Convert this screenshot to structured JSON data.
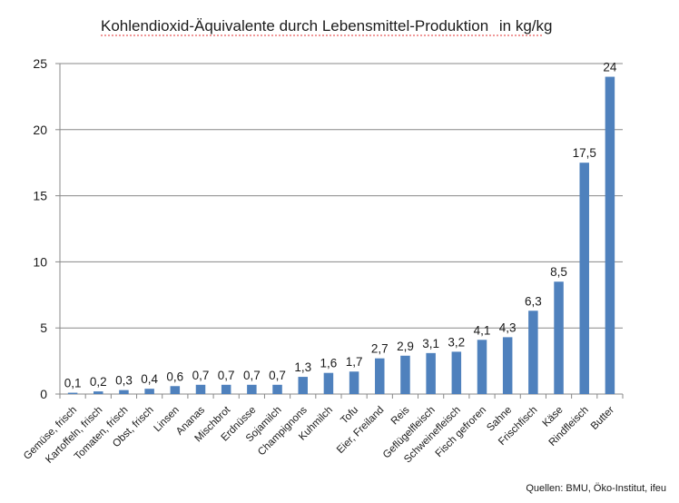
{
  "chart_data": {
    "type": "bar",
    "title": "Kohlendioxid-Äquivalente durch Lebensmittel-Produktion",
    "title_unit": "in kg/kg",
    "source": "Quellen: BMU, Öko-Institut, ifeu",
    "categories": [
      "Gemüse, frisch",
      "Kartoffeln, frisch",
      "Tomaten, frisch",
      "Obst, frisch",
      "Linsen",
      "Ananas",
      "Mischbrot",
      "Erdnüsse",
      "Sojamilch",
      "Champignons",
      "Kuhmilch",
      "Tofu",
      "Eier, Freiland",
      "Reis",
      "Geflügelfleisch",
      "Schweinefleisch",
      "Fisch gefroren",
      "Sahne",
      "Frischfisch",
      "Käse",
      "Rindfleisch",
      "Butter"
    ],
    "values": [
      0.1,
      0.2,
      0.3,
      0.4,
      0.6,
      0.7,
      0.7,
      0.7,
      0.7,
      1.3,
      1.6,
      1.7,
      2.7,
      2.9,
      3.1,
      3.2,
      4.1,
      4.3,
      6.3,
      8.5,
      17.5,
      24
    ],
    "data_labels": [
      "0,1",
      "0,2",
      "0,3",
      "0,4",
      "0,6",
      "0,7",
      "0,7",
      "0,7",
      "0,7",
      "1,3",
      "1,6",
      "1,7",
      "2,7",
      "2,9",
      "3,1",
      "3,2",
      "4,1",
      "4,3",
      "6,3",
      "8,5",
      "17,5",
      "24"
    ],
    "yticks": [
      0,
      5,
      10,
      15,
      20,
      25
    ],
    "ylim": [
      0,
      25
    ],
    "xlabel": "",
    "ylabel": "",
    "grid": true,
    "legend": "none",
    "bar_color": "#4f81bd",
    "grid_color": "#888888"
  }
}
